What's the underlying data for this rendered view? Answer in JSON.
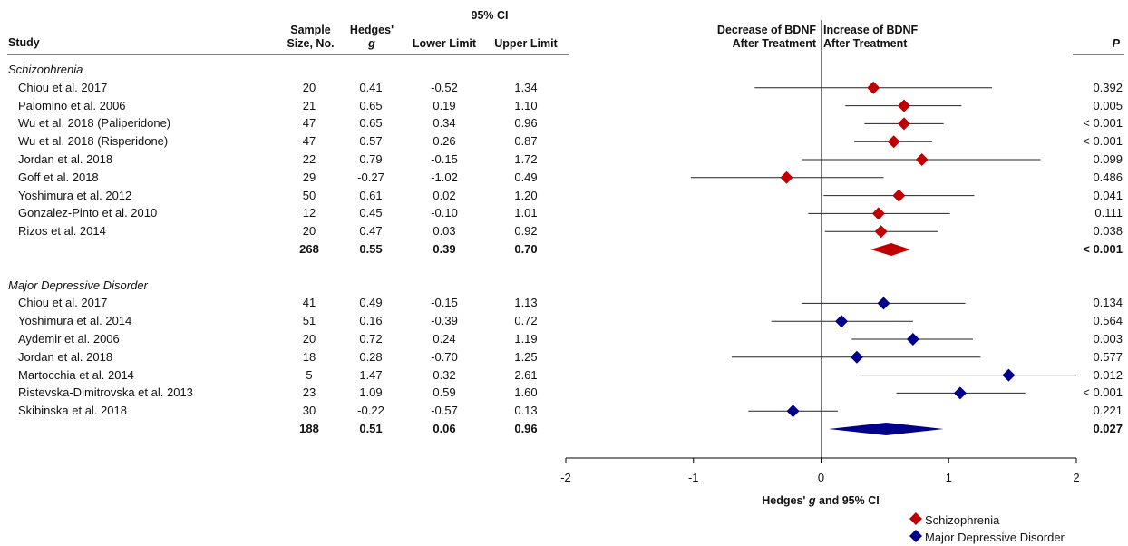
{
  "headers": {
    "study": "Study",
    "sample_line1": "Sample",
    "sample_line2": "Size, No.",
    "hedges_line1": "Hedges'",
    "hedges_line2": "g",
    "ci": "95% CI",
    "lower": "Lower Limit",
    "upper": "Upper Limit",
    "decrease_line1": "Decrease of BDNF",
    "decrease_line2": "After Treatment",
    "increase_line1": "Increase of BDNF",
    "increase_line2": "After Treatment",
    "p": "P"
  },
  "groups": [
    {
      "label": "Schizophrenia",
      "rows": [
        {
          "study": "Chiou et al. 2017",
          "n": "20",
          "g": "0.41",
          "lower": "-0.52",
          "upper": "1.34",
          "p": "0.392"
        },
        {
          "study": "Palomino et al. 2006",
          "n": "21",
          "g": "0.65",
          "lower": "0.19",
          "upper": "1.10",
          "p": "0.005"
        },
        {
          "study": "Wu et al. 2018 (Paliperidone)",
          "n": "47",
          "g": "0.65",
          "lower": "0.34",
          "upper": "0.96",
          "p": "< 0.001"
        },
        {
          "study": "Wu et al. 2018 (Risperidone)",
          "n": "47",
          "g": "0.57",
          "lower": "0.26",
          "upper": "0.87",
          "p": "< 0.001"
        },
        {
          "study": "Jordan et al. 2018",
          "n": "22",
          "g": "0.79",
          "lower": "-0.15",
          "upper": "1.72",
          "p": "0.099"
        },
        {
          "study": "Goff et al. 2018",
          "n": "29",
          "g": "-0.27",
          "lower": "-1.02",
          "upper": "0.49",
          "p": "0.486"
        },
        {
          "study": "Yoshimura et al. 2012",
          "n": "50",
          "g": "0.61",
          "lower": "0.02",
          "upper": "1.20",
          "p": "0.041"
        },
        {
          "study": "Gonzalez-Pinto et al. 2010",
          "n": "12",
          "g": "0.45",
          "lower": "-0.10",
          "upper": "1.01",
          "p": "0.111"
        },
        {
          "study": "Rizos et al. 2014",
          "n": "20",
          "g": "0.47",
          "lower": "0.03",
          "upper": "0.92",
          "p": "0.038"
        }
      ],
      "summary": {
        "n": "268",
        "g": "0.55",
        "lower": "0.39",
        "upper": "0.70",
        "p": "< 0.001"
      }
    },
    {
      "label": "Major Depressive Disorder",
      "rows": [
        {
          "study": "Chiou et al. 2017",
          "n": "41",
          "g": "0.49",
          "lower": "-0.15",
          "upper": "1.13",
          "p": "0.134"
        },
        {
          "study": "Yoshimura et al. 2014",
          "n": "51",
          "g": "0.16",
          "lower": "-0.39",
          "upper": "0.72",
          "p": "0.564"
        },
        {
          "study": "Aydemir et al. 2006",
          "n": "20",
          "g": "0.72",
          "lower": "0.24",
          "upper": "1.19",
          "p": "0.003"
        },
        {
          "study": "Jordan et al. 2018",
          "n": "18",
          "g": "0.28",
          "lower": "-0.70",
          "upper": "1.25",
          "p": "0.577"
        },
        {
          "study": "Martocchia et al. 2014",
          "n": "5",
          "g": "1.47",
          "lower": "0.32",
          "upper": "2.61",
          "p": "0.012"
        },
        {
          "study": "Ristevska-Dimitrovska et al. 2013",
          "n": "23",
          "g": "1.09",
          "lower": "0.59",
          "upper": "1.60",
          "p": "< 0.001"
        },
        {
          "study": "Skibinska et al. 2018",
          "n": "30",
          "g": "-0.22",
          "lower": "-0.57",
          "upper": "0.13",
          "p": "0.221"
        }
      ],
      "summary": {
        "n": "188",
        "g": "0.51",
        "lower": "0.06",
        "upper": "0.96",
        "p": "0.027"
      }
    }
  ],
  "chart_data": {
    "type": "forest",
    "xlabel_prefix": "Hedges' ",
    "xlabel_italic": "g",
    "xlabel_suffix": " and 95% CI",
    "xlim": [
      -2,
      2
    ],
    "xticks": [
      "-2",
      "-1",
      "0",
      "1",
      "2"
    ],
    "legend_position": "bottom-right",
    "series": [
      {
        "name": "Schizophrenia",
        "color": "#c00000",
        "points": [
          {
            "g": 0.41,
            "lower": -0.52,
            "upper": 1.34
          },
          {
            "g": 0.65,
            "lower": 0.19,
            "upper": 1.1
          },
          {
            "g": 0.65,
            "lower": 0.34,
            "upper": 0.96
          },
          {
            "g": 0.57,
            "lower": 0.26,
            "upper": 0.87
          },
          {
            "g": 0.79,
            "lower": -0.15,
            "upper": 1.72
          },
          {
            "g": -0.27,
            "lower": -1.02,
            "upper": 0.49
          },
          {
            "g": 0.61,
            "lower": 0.02,
            "upper": 1.2
          },
          {
            "g": 0.45,
            "lower": -0.1,
            "upper": 1.01
          },
          {
            "g": 0.47,
            "lower": 0.03,
            "upper": 0.92
          }
        ],
        "summary": {
          "g": 0.55,
          "lower": 0.39,
          "upper": 0.7
        }
      },
      {
        "name": "Major Depressive Disorder",
        "color": "#00008b",
        "points": [
          {
            "g": 0.49,
            "lower": -0.15,
            "upper": 1.13
          },
          {
            "g": 0.16,
            "lower": -0.39,
            "upper": 0.72
          },
          {
            "g": 0.72,
            "lower": 0.24,
            "upper": 1.19
          },
          {
            "g": 0.28,
            "lower": -0.7,
            "upper": 1.25
          },
          {
            "g": 1.47,
            "lower": 0.32,
            "upper": 2.61
          },
          {
            "g": 1.09,
            "lower": 0.59,
            "upper": 1.6
          },
          {
            "g": -0.22,
            "lower": -0.57,
            "upper": 0.13
          }
        ],
        "summary": {
          "g": 0.51,
          "lower": 0.06,
          "upper": 0.96
        }
      }
    ]
  }
}
